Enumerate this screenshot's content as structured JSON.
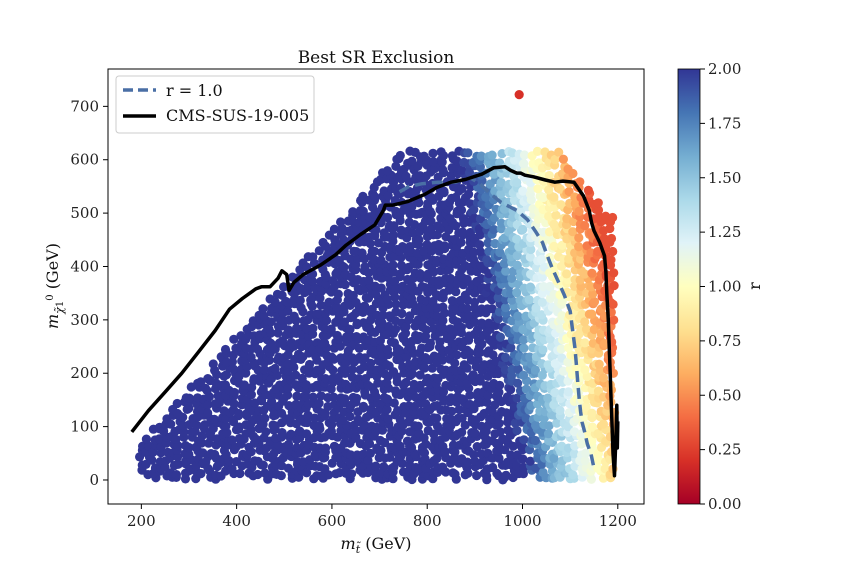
{
  "chart_data": {
    "type": "scatter",
    "title": "Best SR Exclusion",
    "xlabel": "m_t̃ (GeV)",
    "ylabel": "m_χ̃1⁰ (GeV)",
    "xlim": [
      130,
      1255
    ],
    "ylim": [
      -45,
      770
    ],
    "xticks": [
      200,
      400,
      600,
      800,
      1000,
      1200
    ],
    "yticks": [
      0,
      100,
      200,
      300,
      400,
      500,
      600,
      700
    ],
    "colorbar": {
      "label": "r",
      "range": [
        0.0,
        2.0
      ],
      "ticks": [
        "0.00",
        "0.25",
        "0.50",
        "0.75",
        "1.00",
        "1.25",
        "1.50",
        "1.75",
        "2.00"
      ],
      "colormap": "RdYlBu"
    },
    "legend": {
      "placement": "top-left",
      "entries": [
        {
          "label": "r = 1.0",
          "style": "dashed",
          "color": "#4a6fa5"
        },
        {
          "label": "CMS-SUS-19-005",
          "style": "solid",
          "color": "#000000"
        }
      ]
    },
    "series": [
      {
        "name": "CMS-SUS-19-005",
        "x": [
          180,
          215,
          250,
          285,
          320,
          355,
          385,
          412,
          440,
          452,
          470,
          487,
          495,
          505,
          510,
          520,
          540,
          575,
          608,
          630,
          660,
          690,
          708,
          712,
          728,
          760,
          795,
          820,
          850,
          880,
          915,
          940,
          963,
          975,
          988,
          996,
          1005,
          1023,
          1048,
          1068,
          1085,
          1108,
          1128,
          1140,
          1145,
          1150,
          1162,
          1172,
          1175,
          1177,
          1180,
          1182,
          1184,
          1186,
          1188,
          1190,
          1193,
          1196,
          1198,
          1199,
          1200
        ],
        "y": [
          90,
          130,
          165,
          200,
          240,
          280,
          320,
          340,
          358,
          362,
          362,
          378,
          392,
          385,
          355,
          370,
          385,
          402,
          422,
          440,
          460,
          478,
          505,
          515,
          515,
          522,
          535,
          548,
          558,
          563,
          573,
          585,
          587,
          580,
          575,
          575,
          571,
          568,
          562,
          558,
          560,
          558,
          532,
          505,
          482,
          467,
          445,
          420,
          390,
          350,
          300,
          250,
          200,
          150,
          100,
          50,
          8,
          80,
          140,
          60,
          110
        ]
      },
      {
        "name": "r = 1.0",
        "x": [
          742,
          762,
          788,
          822,
          858,
          876,
          890,
          910,
          930,
          955,
          988,
          1010,
          1028,
          1042,
          1050,
          1062,
          1075,
          1088,
          1100,
          1105,
          1110,
          1113,
          1116,
          1119,
          1122,
          1125,
          1130,
          1136,
          1144,
          1150
        ],
        "y": [
          540,
          550,
          555,
          558,
          558,
          562,
          566,
          556,
          538,
          520,
          505,
          488,
          465,
          445,
          425,
          398,
          372,
          346,
          316,
          282,
          248,
          218,
          182,
          152,
          128,
          108,
          92,
          68,
          48,
          22
        ]
      }
    ],
    "scatter_rules": {
      "r_decreases_with_mass": true,
      "description_of_regions": "dark blue (r>=2) at low stop mass, fading to light blue, yellow, orange and red (r<0.5) near the kinematic edge at high stop mass",
      "isolated_point": {
        "x": 993,
        "y": 722,
        "r": 0.2
      }
    }
  }
}
